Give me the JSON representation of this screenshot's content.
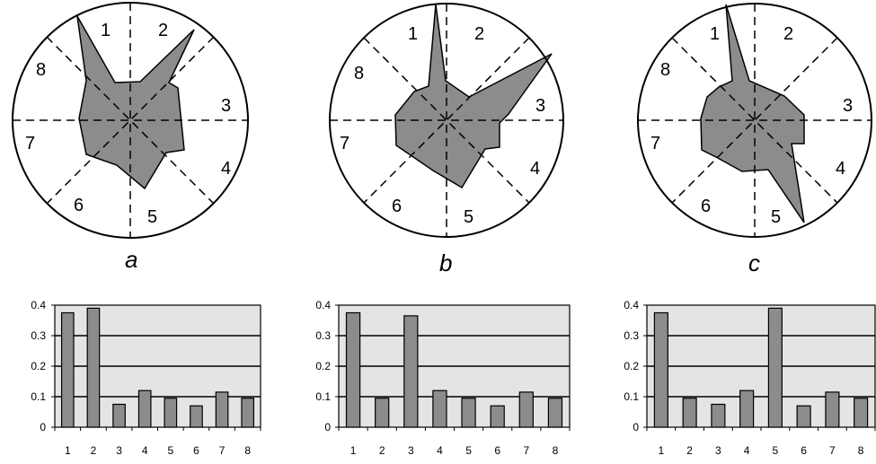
{
  "colors": {
    "polygon_fill": "#8c8c8c",
    "bar_fill": "#8c8c8c",
    "plot_background": "#e4e4e4",
    "outline": "#000000"
  },
  "chart_data": [
    {
      "type": "radar",
      "panel_label": "a",
      "sector_labels": [
        "1",
        "2",
        "3",
        "4",
        "5",
        "6",
        "7",
        "8"
      ],
      "spikes": [
        {
          "sector": 1,
          "level": 1.0
        },
        {
          "sector": 2,
          "level": 0.98
        },
        {
          "sector": 5,
          "level": null
        }
      ]
    },
    {
      "type": "radar",
      "panel_label": "b",
      "sector_labels": [
        "1",
        "2",
        "3",
        "4",
        "5",
        "6",
        "7",
        "8"
      ],
      "spikes": [
        {
          "sector": 1,
          "level": 1.0
        },
        {
          "sector": 3,
          "level": 0.98
        }
      ]
    },
    {
      "type": "radar",
      "panel_label": "c",
      "sector_labels": [
        "1",
        "2",
        "3",
        "4",
        "5",
        "6",
        "7",
        "8"
      ],
      "spikes": [
        {
          "sector": 1,
          "level": 1.0
        },
        {
          "sector": 5,
          "level": 1.0
        }
      ]
    },
    {
      "type": "bar",
      "categories": [
        "1",
        "2",
        "3",
        "4",
        "5",
        "6",
        "7",
        "8"
      ],
      "values": [
        0.375,
        0.39,
        0.075,
        0.12,
        0.095,
        0.07,
        0.115,
        0.095
      ],
      "yticks": [
        "0",
        "0.1",
        "0.2",
        "0.3",
        "0.4"
      ],
      "ylim": [
        0,
        0.4
      ],
      "grid": true
    },
    {
      "type": "bar",
      "categories": [
        "1",
        "2",
        "3",
        "4",
        "5",
        "6",
        "7",
        "8"
      ],
      "values": [
        0.375,
        0.095,
        0.365,
        0.12,
        0.095,
        0.07,
        0.115,
        0.095
      ],
      "yticks": [
        "0",
        "0.1",
        "0.2",
        "0.3",
        "0.4"
      ],
      "ylim": [
        0,
        0.4
      ],
      "grid": true
    },
    {
      "type": "bar",
      "categories": [
        "1",
        "2",
        "3",
        "4",
        "5",
        "6",
        "7",
        "8"
      ],
      "values": [
        0.375,
        0.095,
        0.075,
        0.12,
        0.39,
        0.07,
        0.115,
        0.095
      ],
      "yticks": [
        "0",
        "0.1",
        "0.2",
        "0.3",
        "0.4"
      ],
      "ylim": [
        0,
        0.4
      ],
      "grid": true
    }
  ]
}
